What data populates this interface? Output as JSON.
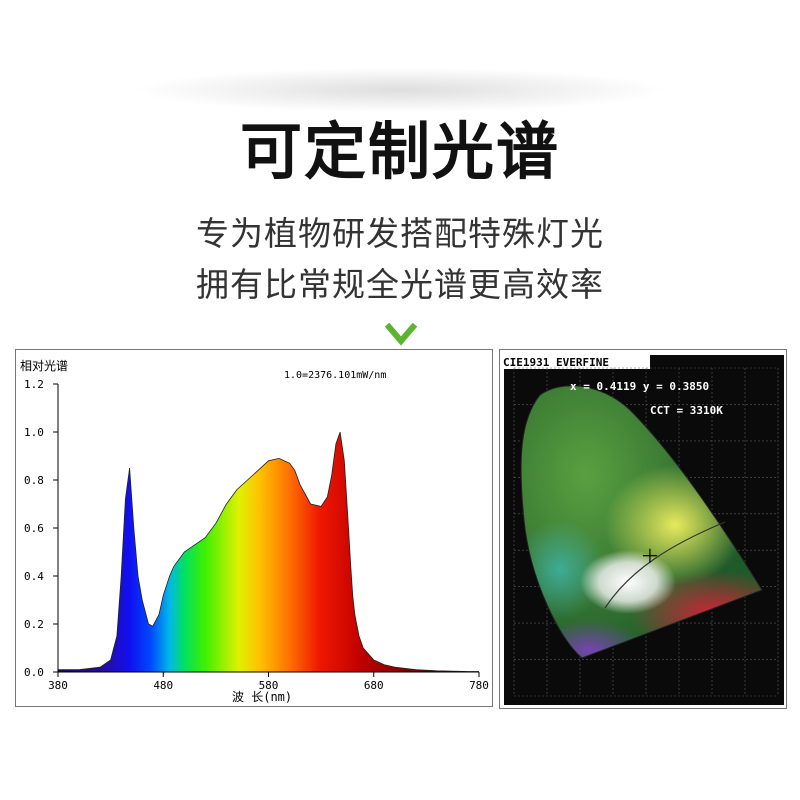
{
  "header": {
    "title": "可定制光谱",
    "subtitle_line1": "专为植物研发搭配特殊灯光",
    "subtitle_line2": "拥有比常规全光谱更高效率"
  },
  "icons": {
    "chevron": "chevron-down-icon"
  },
  "colors": {
    "accent_green": "#5bb432",
    "title": "#111111",
    "subtitle": "#333333"
  },
  "chart_data": [
    {
      "type": "area",
      "ylabel": "相对光谱",
      "xlabel": "波 长(nm)",
      "annotation": "1.0=2376.101mW/nm",
      "xlim": [
        380,
        780
      ],
      "ylim": [
        0,
        1.2
      ],
      "x_ticks": [
        "380",
        "480",
        "580",
        "680",
        "780"
      ],
      "y_ticks": [
        "0.0",
        "0.2",
        "0.4",
        "0.6",
        "0.8",
        "1.0",
        "1.2"
      ],
      "grid": false,
      "series": [
        {
          "x": [
            380,
            400,
            420,
            430,
            436,
            440,
            444,
            448,
            452,
            456,
            460,
            466,
            470,
            476,
            480,
            486,
            490,
            500,
            510,
            520,
            530,
            540,
            550,
            560,
            570,
            580,
            590,
            600,
            605,
            610,
            620,
            630,
            636,
            640,
            644,
            648,
            652,
            656,
            658,
            660,
            662,
            666,
            670,
            676,
            680,
            690,
            700,
            720,
            740,
            760,
            770,
            780
          ],
          "y": [
            0.01,
            0.01,
            0.02,
            0.05,
            0.15,
            0.4,
            0.72,
            0.85,
            0.6,
            0.4,
            0.3,
            0.2,
            0.19,
            0.24,
            0.32,
            0.4,
            0.44,
            0.5,
            0.53,
            0.56,
            0.62,
            0.7,
            0.76,
            0.8,
            0.84,
            0.88,
            0.89,
            0.87,
            0.84,
            0.78,
            0.7,
            0.69,
            0.73,
            0.82,
            0.95,
            1.0,
            0.88,
            0.6,
            0.45,
            0.32,
            0.24,
            0.15,
            0.1,
            0.07,
            0.05,
            0.03,
            0.02,
            0.01,
            0.005,
            0.003,
            0.002,
            0.002
          ]
        }
      ]
    },
    {
      "type": "scatter",
      "title": "CIE1931 EVERFINE",
      "readout_xy": "x = 0.4119 y = 0.3850",
      "readout_cct": "CCT = 3310K",
      "point": {
        "x": 0.4119,
        "y": 0.385
      },
      "xlim": [
        0,
        0.8
      ],
      "ylim": [
        0,
        0.9
      ]
    }
  ]
}
